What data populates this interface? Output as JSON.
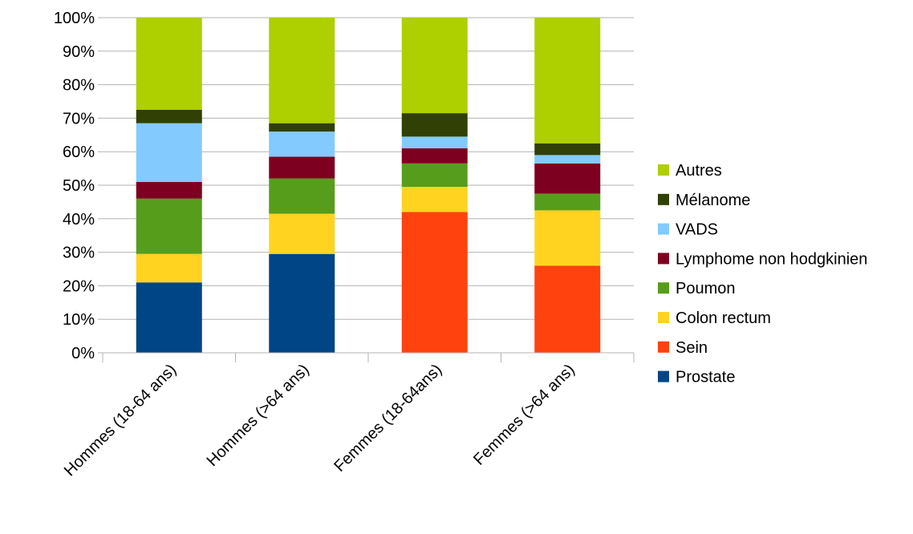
{
  "chart_data": {
    "type": "bar",
    "stacked": true,
    "categories": [
      "Hommes (18-64 ans)",
      "Hommes (>64 ans)",
      "Femmes (18-64ans)",
      "Femmes (>64 ans)"
    ],
    "ylim": [
      0,
      100
    ],
    "yticks": [
      "0%",
      "10%",
      "20%",
      "30%",
      "40%",
      "50%",
      "60%",
      "70%",
      "80%",
      "90%",
      "100%"
    ],
    "grid": true,
    "legend_position": "right",
    "series": [
      {
        "name": "Prostate",
        "color": "#004586",
        "values": [
          21,
          29.5,
          0,
          0
        ]
      },
      {
        "name": "Sein",
        "color": "#ff420e",
        "values": [
          0,
          0,
          42,
          26
        ]
      },
      {
        "name": "Colon rectum",
        "color": "#ffd320",
        "values": [
          8.5,
          12,
          7.5,
          16.5
        ]
      },
      {
        "name": "Poumon",
        "color": "#579d1c",
        "values": [
          16.5,
          10.5,
          7,
          5
        ]
      },
      {
        "name": "Lymphome non hodgkinien",
        "color": "#7e0021",
        "values": [
          5,
          6.5,
          4.5,
          9
        ]
      },
      {
        "name": "VADS",
        "color": "#83caff",
        "values": [
          17.5,
          7.5,
          3.5,
          2.5
        ]
      },
      {
        "name": "Mélanome",
        "color": "#314004",
        "values": [
          4,
          2.5,
          7,
          3.5
        ]
      },
      {
        "name": "Autres",
        "color": "#aecf00",
        "values": [
          27.5,
          31.5,
          28.5,
          37.5
        ]
      }
    ]
  }
}
